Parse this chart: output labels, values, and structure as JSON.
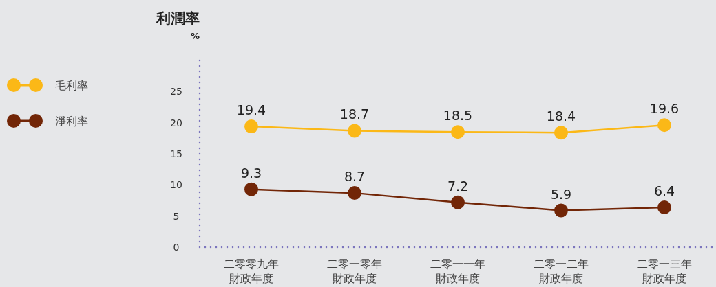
{
  "chart_data": {
    "type": "line",
    "title": "利潤率",
    "ylabel": "%",
    "categories": [
      "二零零九年財政年度",
      "二零一零年財政年度",
      "二零一一年財政年度",
      "二零一二年財政年度",
      "二零一三年財政年度"
    ],
    "series": [
      {
        "name": "毛利率",
        "color": "#fbb817",
        "values": [
          19.4,
          18.7,
          18.5,
          18.4,
          19.6
        ]
      },
      {
        "name": "淨利率",
        "color": "#722607",
        "values": [
          9.3,
          8.7,
          7.2,
          5.9,
          6.4
        ]
      }
    ],
    "ylim": [
      0,
      30
    ],
    "yticks": [
      0,
      5,
      10,
      15,
      20,
      25
    ],
    "grid": false,
    "legend": "left",
    "marker": "circle",
    "line_style": "solid",
    "data_labels": true
  }
}
